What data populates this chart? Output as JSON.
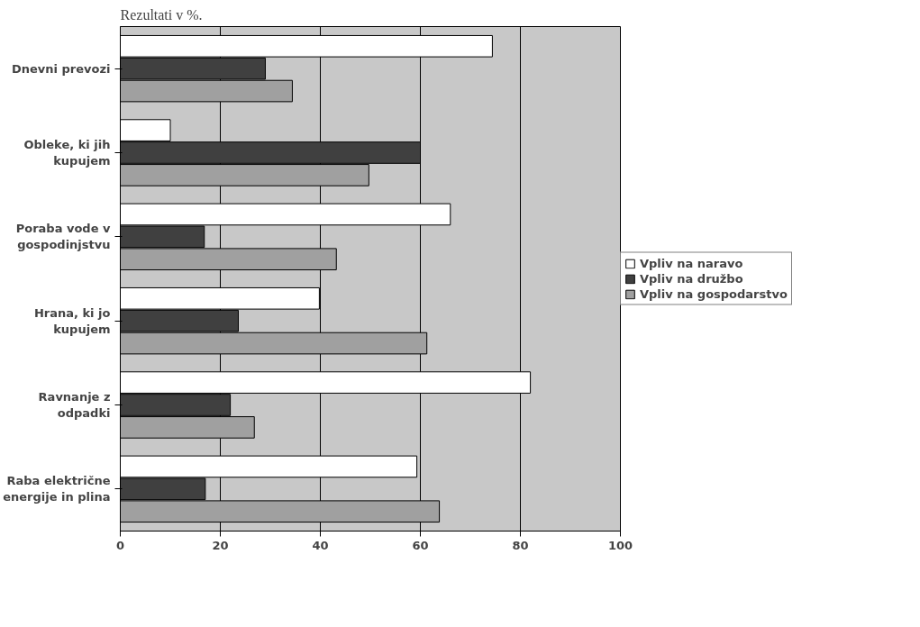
{
  "chart_data": {
    "type": "bar",
    "orientation": "horizontal",
    "title": "Rezultati v %.",
    "categories": [
      "Dnevni prevozi",
      "Obleke, ki jih kupujem",
      "Poraba vode v gospodinjstvu",
      "Hrana, ki jo kupujem",
      "Ravnanje z odpadki",
      "Raba električne energije in plina"
    ],
    "series": [
      {
        "name": "Vpliv na naravo",
        "color": "#ffffff",
        "values": [
          74.4,
          10,
          66,
          39.8,
          82,
          59.3
        ]
      },
      {
        "name": "Vpliv na družbo",
        "color": "#404040",
        "values": [
          29,
          60,
          16.8,
          23.6,
          22,
          17
        ]
      },
      {
        "name": "Vpliv na gospodarstvo",
        "color": "#a0a0a0",
        "values": [
          34.4,
          49.7,
          43.2,
          61.3,
          26.8,
          63.8
        ]
      }
    ],
    "xlim": [
      0,
      100
    ],
    "xticks": [
      0,
      20,
      40,
      60,
      80,
      100
    ],
    "grid": "x",
    "legend": "right"
  }
}
